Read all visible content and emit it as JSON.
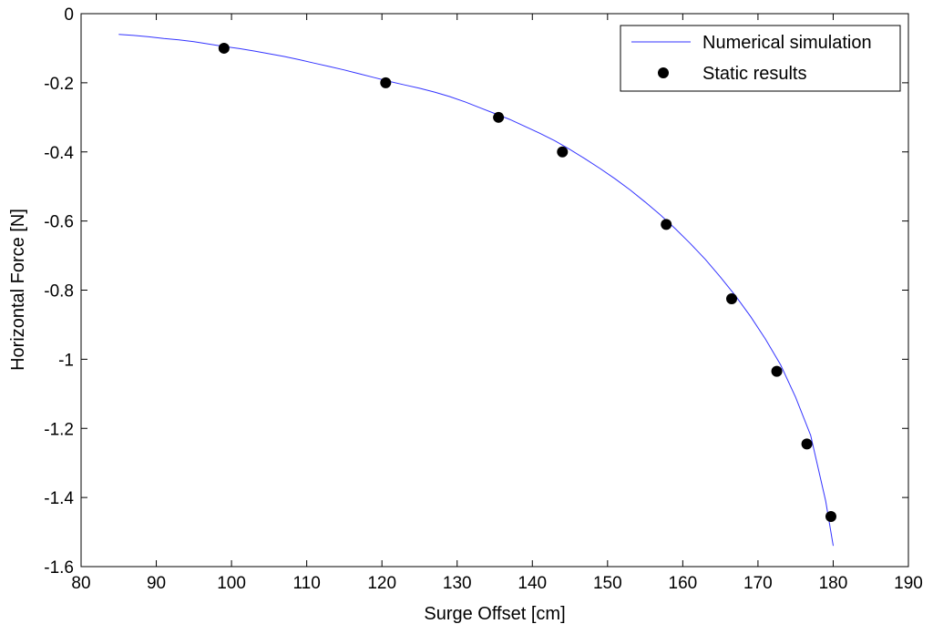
{
  "chart_data": {
    "type": "line",
    "xlabel": "Surge Offset [cm]",
    "ylabel": "Horizontal Force [N]",
    "xlim": [
      80,
      190
    ],
    "ylim": [
      -1.6,
      0
    ],
    "xticks": [
      80,
      90,
      100,
      110,
      120,
      130,
      140,
      150,
      160,
      170,
      180,
      190
    ],
    "yticks": [
      0,
      -0.2,
      -0.4,
      -0.6,
      -0.8,
      -1,
      -1.2,
      -1.4,
      -1.6
    ],
    "xtick_labels": [
      "80",
      "90",
      "100",
      "110",
      "120",
      "130",
      "140",
      "150",
      "160",
      "170",
      "180",
      "190"
    ],
    "ytick_labels": [
      "0",
      "-0.2",
      "-0.4",
      "-0.6",
      "-0.8",
      "-1",
      "-1.2",
      "-1.4",
      "-1.6"
    ],
    "grid": false,
    "legend_position": "top-right",
    "series": [
      {
        "name": "Numerical simulation",
        "style": "line",
        "color": "#3333ff",
        "x": [
          85,
          87,
          89,
          91,
          93,
          95,
          97,
          99,
          101,
          103,
          105,
          107,
          109,
          111,
          113,
          115,
          117,
          119,
          121,
          123,
          125,
          127,
          129,
          131,
          133,
          135,
          137,
          139,
          141,
          143,
          145,
          147,
          149,
          151,
          153,
          155,
          157,
          159,
          161,
          163,
          165,
          167,
          169,
          171,
          173,
          175,
          177,
          179,
          180
        ],
        "y": [
          -0.06,
          -0.063,
          -0.067,
          -0.072,
          -0.076,
          -0.081,
          -0.088,
          -0.095,
          -0.101,
          -0.108,
          -0.116,
          -0.124,
          -0.133,
          -0.143,
          -0.153,
          -0.163,
          -0.174,
          -0.185,
          -0.196,
          -0.206,
          -0.216,
          -0.227,
          -0.24,
          -0.255,
          -0.272,
          -0.289,
          -0.306,
          -0.326,
          -0.346,
          -0.368,
          -0.393,
          -0.42,
          -0.448,
          -0.478,
          -0.51,
          -0.545,
          -0.582,
          -0.622,
          -0.665,
          -0.711,
          -0.762,
          -0.816,
          -0.876,
          -0.942,
          -1.016,
          -1.11,
          -1.22,
          -1.41,
          -1.54
        ]
      },
      {
        "name": "Static results",
        "style": "marker",
        "color": "#000000",
        "x": [
          99,
          120.5,
          135.5,
          144,
          157.8,
          166.5,
          172.5,
          176.5,
          179.7
        ],
        "y": [
          -0.1,
          -0.2,
          -0.3,
          -0.4,
          -0.61,
          -0.825,
          -1.035,
          -1.245,
          -1.455
        ]
      }
    ]
  }
}
